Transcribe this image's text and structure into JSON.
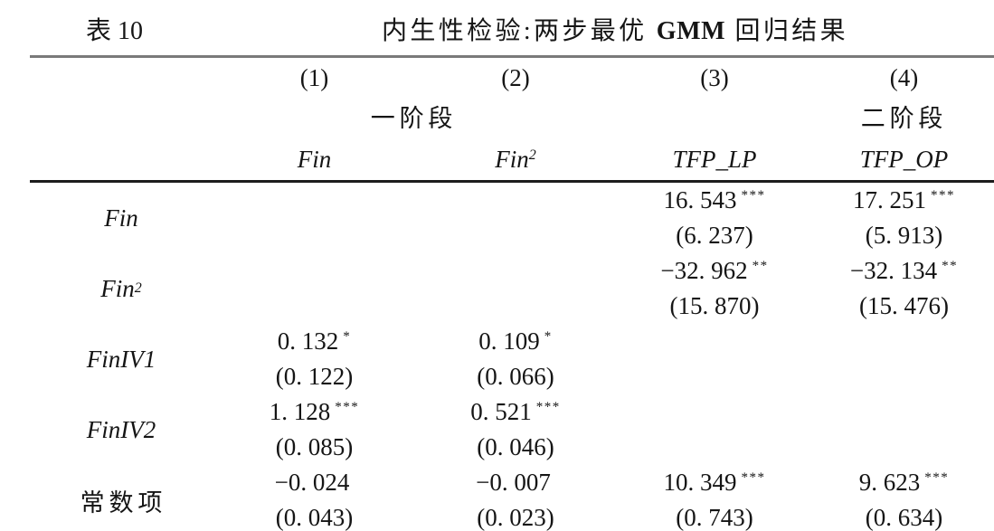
{
  "table": {
    "caption": {
      "label": "表 10",
      "title_pre": "内生性检验:两步最优 ",
      "title_gmm": "GMM",
      "title_post": " 回归结果"
    },
    "header": {
      "col_numbers": [
        "(1)",
        "(2)",
        "(3)",
        "(4)"
      ],
      "stage_first": "一阶段",
      "stage_second": "二阶段",
      "dep_vars": [
        {
          "base": "Fin",
          "sup": ""
        },
        {
          "base": "Fin",
          "sup": "2"
        },
        {
          "base": "TFP_LP",
          "sup": ""
        },
        {
          "base": "TFP_OP",
          "sup": ""
        }
      ]
    },
    "rows": [
      {
        "label": "Fin",
        "label_sup": "",
        "cells": [
          {
            "est": "",
            "stars": "",
            "se": ""
          },
          {
            "est": "",
            "stars": "",
            "se": ""
          },
          {
            "est": "16. 543",
            "stars": "***",
            "se": "(6. 237)"
          },
          {
            "est": "17. 251",
            "stars": "***",
            "se": "(5. 913)"
          }
        ]
      },
      {
        "label": "Fin",
        "label_sup": "2",
        "cells": [
          {
            "est": "",
            "stars": "",
            "se": ""
          },
          {
            "est": "",
            "stars": "",
            "se": ""
          },
          {
            "est": "−32. 962",
            "stars": "**",
            "se": "(15. 870)"
          },
          {
            "est": "−32. 134",
            "stars": "**",
            "se": "(15. 476)"
          }
        ]
      },
      {
        "label": "FinIV1",
        "label_sup": "",
        "cells": [
          {
            "est": "0. 132",
            "stars": "*",
            "se": "(0. 122)"
          },
          {
            "est": "0. 109",
            "stars": "*",
            "se": "(0. 066)"
          },
          {
            "est": "",
            "stars": "",
            "se": ""
          },
          {
            "est": "",
            "stars": "",
            "se": ""
          }
        ]
      },
      {
        "label": "FinIV2",
        "label_sup": "",
        "cells": [
          {
            "est": "1. 128",
            "stars": "***",
            "se": "(0. 085)"
          },
          {
            "est": "0. 521",
            "stars": "***",
            "se": "(0. 046)"
          },
          {
            "est": "",
            "stars": "",
            "se": ""
          },
          {
            "est": "",
            "stars": "",
            "se": ""
          }
        ]
      },
      {
        "label": "常数项",
        "label_sup": "",
        "cells": [
          {
            "est": "−0. 024",
            "stars": "",
            "se": "(0. 043)"
          },
          {
            "est": "−0. 007",
            "stars": "",
            "se": "(0. 023)"
          },
          {
            "est": "10. 349",
            "stars": "***",
            "se": "(0. 743)"
          },
          {
            "est": "9. 623",
            "stars": "***",
            "se": "(0. 634)"
          }
        ]
      }
    ],
    "colors": {
      "background": "#ffffff",
      "text": "#151515",
      "rule_top": "#7a7a7a",
      "rule_mid": "#1c1c1c"
    }
  }
}
